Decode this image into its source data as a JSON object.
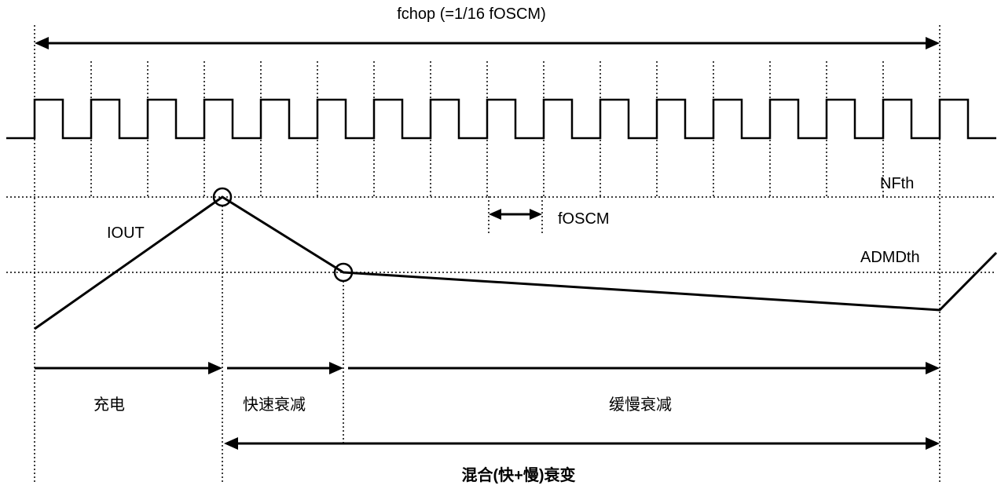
{
  "labels": {
    "fchop": "fchop (=1/16 fOSCM)",
    "nfth": "NFth",
    "iout": "IOUT",
    "foscm": "fOSCM",
    "admdth": "ADMDth",
    "charge": "充电",
    "fast_decay": "快速衰减",
    "slow_decay": "缓慢衰减",
    "mixed_decay": "混合(快+慢)衰变"
  }
}
